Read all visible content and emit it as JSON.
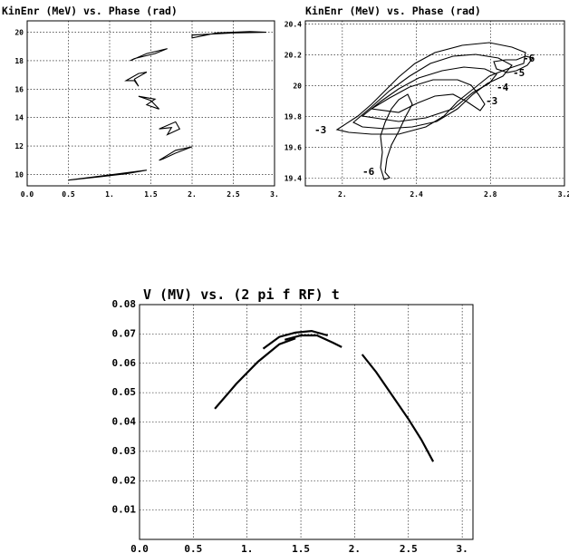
{
  "chart_data": [
    {
      "type": "line",
      "title": "KinEnr (MeV)  vs. Phase (rad)",
      "x_ticks": [
        "0.0",
        "0.5",
        "1.",
        "1.5",
        "2.",
        "2.5",
        "3."
      ],
      "y_ticks": [
        "10",
        "12",
        "14",
        "16",
        "18",
        "20"
      ],
      "xlim": [
        0.0,
        3.0
      ],
      "ylim": [
        9.2,
        20.8
      ],
      "grid": true,
      "series": [
        {
          "values": [
            [
              0.5,
              9.6
            ],
            [
              0.9,
              9.85
            ],
            [
              1.2,
              10.05
            ],
            [
              1.45,
              10.3
            ]
          ]
        },
        {
          "values": [
            [
              1.25,
              18.0
            ],
            [
              1.45,
              18.5
            ],
            [
              1.7,
              18.85
            ],
            [
              1.55,
              18.5
            ],
            [
              1.3,
              18.15
            ]
          ]
        },
        {
          "values": [
            [
              1.2,
              16.6
            ],
            [
              1.35,
              17.1
            ],
            [
              1.45,
              17.2
            ],
            [
              1.3,
              16.7
            ],
            [
              1.35,
              16.2
            ],
            [
              1.3,
              16.6
            ]
          ]
        },
        {
          "values": [
            [
              1.35,
              15.5
            ],
            [
              1.55,
              15.3
            ],
            [
              1.45,
              14.9
            ],
            [
              1.6,
              14.6
            ],
            [
              1.5,
              15.2
            ]
          ]
        },
        {
          "values": [
            [
              1.6,
              13.2
            ],
            [
              1.8,
              13.7
            ],
            [
              1.85,
              13.2
            ],
            [
              1.7,
              12.8
            ],
            [
              1.75,
              13.3
            ]
          ]
        },
        {
          "values": [
            [
              1.6,
              11.0
            ],
            [
              1.8,
              11.7
            ],
            [
              2.0,
              11.95
            ],
            [
              1.8,
              11.5
            ],
            [
              1.65,
              11.1
            ]
          ]
        },
        {
          "values": [
            [
              2.0,
              19.6
            ],
            [
              2.3,
              19.95
            ],
            [
              2.7,
              20.05
            ],
            [
              2.9,
              20.0
            ],
            [
              2.5,
              19.95
            ],
            [
              2.0,
              19.8
            ]
          ]
        }
      ]
    },
    {
      "type": "line",
      "title": "KinEnr (MeV)  vs. Phase (rad)",
      "x_ticks": [
        "2.",
        "2.4",
        "2.8",
        "3.2"
      ],
      "y_ticks": [
        "19.4",
        "19.6",
        "19.8",
        "20",
        "20.2",
        "20.4"
      ],
      "xlim": [
        1.8,
        3.2
      ],
      "ylim": [
        19.35,
        20.42
      ],
      "grid": true,
      "annotations": [
        "-6",
        "-5",
        "-4",
        "-3",
        "-3",
        "-6"
      ]
    },
    {
      "type": "scatter",
      "title": "V (MV)  vs.  (2 pi f RF) t",
      "x_ticks": [
        "0.0",
        "0.5",
        "1.",
        "1.5",
        "2.",
        "2.5",
        "3."
      ],
      "y_ticks": [
        "0.01",
        "0.02",
        "0.03",
        "0.04",
        "0.05",
        "0.06",
        "0.07",
        "0.08"
      ],
      "xlim": [
        0.0,
        3.1
      ],
      "ylim": [
        0.0,
        0.08
      ],
      "grid": true,
      "series": [
        {
          "values": [
            [
              0.7,
              0.0445
            ],
            [
              0.9,
              0.053
            ],
            [
              1.1,
              0.0605
            ],
            [
              1.3,
              0.0665
            ],
            [
              1.45,
              0.0685
            ]
          ]
        },
        {
          "values": [
            [
              1.15,
              0.065
            ],
            [
              1.3,
              0.069
            ],
            [
              1.45,
              0.0705
            ],
            [
              1.6,
              0.071
            ],
            [
              1.75,
              0.0695
            ]
          ]
        },
        {
          "values": [
            [
              1.35,
              0.068
            ],
            [
              1.5,
              0.0695
            ],
            [
              1.65,
              0.0695
            ],
            [
              1.8,
              0.067
            ],
            [
              1.88,
              0.0655
            ]
          ]
        },
        {
          "values": [
            [
              2.07,
              0.063
            ],
            [
              2.2,
              0.057
            ],
            [
              2.35,
              0.049
            ],
            [
              2.5,
              0.041
            ],
            [
              2.62,
              0.034
            ],
            [
              2.73,
              0.0265
            ]
          ]
        }
      ]
    }
  ]
}
